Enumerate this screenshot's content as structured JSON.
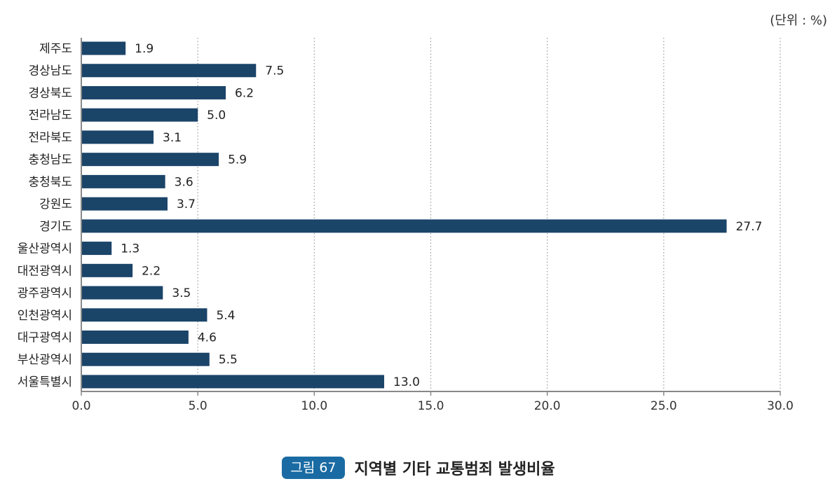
{
  "unit_label": "(단위 : %)",
  "caption": {
    "figure_label": "그림 67",
    "title": "지역별 기타 교통범죄 발생비율"
  },
  "colors": {
    "bar": "#1b4469",
    "badge": "#1a6ba3",
    "axis": "#888888",
    "grid": "#999999"
  },
  "chart_data": {
    "type": "bar",
    "orientation": "horizontal",
    "categories": [
      "제주도",
      "경상남도",
      "경상북도",
      "전라남도",
      "전라북도",
      "충청남도",
      "충청북도",
      "강원도",
      "경기도",
      "울산광역시",
      "대전광역시",
      "광주광역시",
      "인천광역시",
      "대구광역시",
      "부산광역시",
      "서울특별시"
    ],
    "values": [
      1.9,
      7.5,
      6.2,
      5.0,
      3.1,
      5.9,
      3.6,
      3.7,
      27.7,
      1.3,
      2.2,
      3.5,
      5.4,
      4.6,
      5.5,
      13.0
    ],
    "value_labels": [
      "1.9",
      "7.5",
      "6.2",
      "5.0",
      "3.1",
      "5.9",
      "3.6",
      "3.7",
      "27.7",
      "1.3",
      "2.2",
      "3.5",
      "5.4",
      "4.6",
      "5.5",
      "13.0"
    ],
    "xlim": [
      0,
      30
    ],
    "xticks": [
      0,
      5,
      10,
      15,
      20,
      25,
      30
    ],
    "xtick_labels": [
      "0.0",
      "5.0",
      "10.0",
      "15.0",
      "20.0",
      "25.0",
      "30.0"
    ],
    "grid": "vertical dotted",
    "legend": "none"
  }
}
